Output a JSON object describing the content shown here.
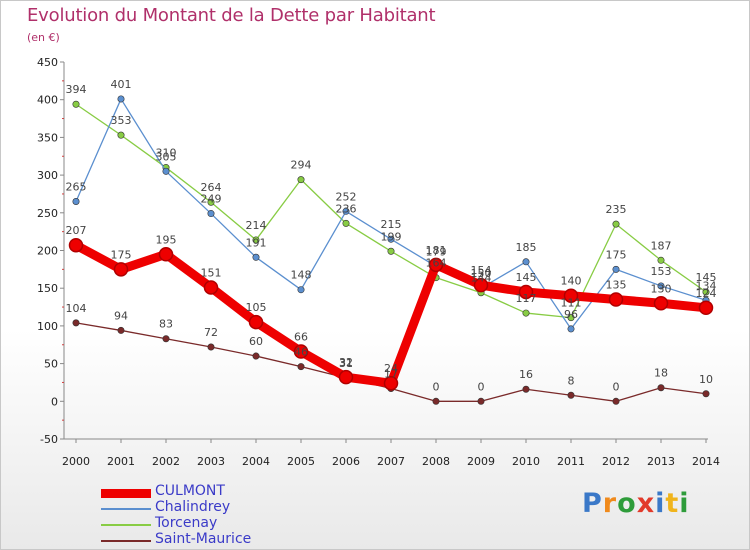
{
  "chart_data": {
    "type": "line",
    "title": "Evolution du Montant de la Dette par Habitant",
    "subtitle": "(en €)",
    "x": [
      "2000",
      "2001",
      "2002",
      "2003",
      "2004",
      "2005",
      "2006",
      "2007",
      "2008",
      "2009",
      "2010",
      "2011",
      "2012",
      "2013",
      "2014"
    ],
    "ylim": [
      -50,
      450
    ],
    "yticks": [
      "-50",
      "0",
      "50",
      "100",
      "150",
      "200",
      "250",
      "300",
      "350",
      "400",
      "450"
    ],
    "grid": false,
    "legend_position": "bottom-left",
    "series": [
      {
        "name": "CULMONT",
        "color": "#ee0000",
        "emphasis": true,
        "values": [
          207,
          175,
          195,
          151,
          105,
          66,
          32,
          24,
          181,
          154,
          145,
          140,
          135,
          130,
          124
        ]
      },
      {
        "name": "Chalindrey",
        "color": "#5b8fcf",
        "values": [
          265,
          401,
          305,
          249,
          191,
          148,
          252,
          215,
          179,
          150,
          185,
          96,
          175,
          153,
          134
        ]
      },
      {
        "name": "Torcenay",
        "color": "#88cc44",
        "values": [
          394,
          353,
          310,
          264,
          214,
          294,
          236,
          199,
          164,
          144,
          117,
          111,
          235,
          187,
          145
        ]
      },
      {
        "name": "Saint-Maurice",
        "color": "#7a2a2a",
        "values": [
          104,
          94,
          83,
          72,
          60,
          46,
          31,
          17,
          0,
          0,
          16,
          8,
          0,
          18,
          10
        ]
      }
    ],
    "point_labels": [
      {
        "series": 0,
        "labels": [
          "207",
          "175",
          "195",
          "151",
          "105",
          "66",
          "32",
          "24",
          "181",
          "154",
          "145",
          "140",
          "135",
          "130",
          "124"
        ]
      },
      {
        "series": 1,
        "labels": [
          "265",
          "401",
          "305",
          "249",
          "191",
          "148",
          "252",
          "215",
          "179",
          "150",
          "185",
          "96",
          "175",
          "153",
          "134"
        ]
      },
      {
        "series": 2,
        "labels": [
          "394",
          "353",
          "310",
          "264",
          "214",
          "294",
          "236",
          "199",
          "164",
          "144",
          "117",
          "111",
          "235",
          "187",
          "145"
        ]
      },
      {
        "series": 3,
        "labels": [
          "104",
          "94",
          "83",
          "72",
          "60",
          "46",
          "31",
          "17",
          "0",
          "0",
          "16",
          "8",
          "0",
          "18",
          "10"
        ]
      }
    ]
  },
  "legend": {
    "items": [
      {
        "label": "CULMONT",
        "color": "#ee0000"
      },
      {
        "label": "Chalindrey",
        "color": "#5b8fcf"
      },
      {
        "label": "Torcenay",
        "color": "#88cc44"
      },
      {
        "label": "Saint-Maurice",
        "color": "#7a2a2a"
      }
    ]
  },
  "logo": {
    "text": "Proxiti",
    "colors": [
      "#3a78c8",
      "#f08a1c",
      "#2e9c3a",
      "#e23a2a",
      "#3a78c8",
      "#f0b41c",
      "#2e9c3a"
    ]
  }
}
